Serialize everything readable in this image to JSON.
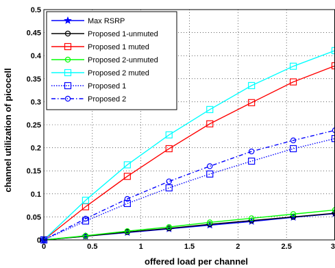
{
  "chart_data": {
    "type": "line",
    "xlabel": "offered load per channel",
    "ylabel": "channel utilization of picocell",
    "xlim": [
      0,
      3
    ],
    "ylim": [
      0,
      0.5
    ],
    "xticks": [
      0,
      0.5,
      1,
      1.5,
      2,
      2.5,
      3
    ],
    "yticks": [
      0,
      0.05,
      0.1,
      0.15,
      0.2,
      0.25,
      0.3,
      0.35,
      0.4,
      0.45,
      0.5
    ],
    "xtick_labels": [
      "0",
      "0.5",
      "1",
      "1.5",
      "2",
      "2.5",
      "3"
    ],
    "ytick_labels": [
      "0",
      "0.05",
      "0.1",
      "0.15",
      "0.2",
      "0.25",
      "0.3",
      "0.35",
      "0.4",
      "0.45",
      "0.5"
    ],
    "grid": true,
    "legend_position": "top-left",
    "x": [
      0,
      0.43,
      0.86,
      1.29,
      1.71,
      2.14,
      2.57,
      3.0
    ],
    "series": [
      {
        "name": "Max RSRP",
        "color": "#0000ff",
        "marker": "star",
        "dash": "solid",
        "values": [
          0,
          0.008,
          0.016,
          0.024,
          0.032,
          0.04,
          0.049,
          0.057
        ]
      },
      {
        "name": "Proposed 1-unmuted",
        "color": "#000000",
        "marker": "circle",
        "dash": "solid",
        "values": [
          0,
          0.008,
          0.017,
          0.025,
          0.034,
          0.042,
          0.05,
          0.058
        ]
      },
      {
        "name": "Proposed 1 muted",
        "color": "#ff0000",
        "marker": "square",
        "dash": "solid",
        "values": [
          0,
          0.072,
          0.138,
          0.198,
          0.252,
          0.298,
          0.343,
          0.378
        ]
      },
      {
        "name": "Proposed 2-unmuted",
        "color": "#00ff00",
        "marker": "circle",
        "dash": "solid",
        "values": [
          0,
          0.009,
          0.019,
          0.028,
          0.038,
          0.047,
          0.056,
          0.065
        ]
      },
      {
        "name": "Proposed 2 muted",
        "color": "#00ffff",
        "marker": "square",
        "dash": "solid",
        "values": [
          0,
          0.086,
          0.163,
          0.228,
          0.283,
          0.335,
          0.377,
          0.411
        ]
      },
      {
        "name": "Proposed 1",
        "color": "#0000ff",
        "marker": "square",
        "dash": "dotted",
        "values": [
          0,
          0.041,
          0.079,
          0.113,
          0.143,
          0.171,
          0.198,
          0.22
        ]
      },
      {
        "name": "Proposed 2",
        "color": "#0000ff",
        "marker": "circle",
        "dash": "dashdot",
        "values": [
          0,
          0.046,
          0.089,
          0.127,
          0.16,
          0.192,
          0.216,
          0.238
        ]
      }
    ]
  }
}
